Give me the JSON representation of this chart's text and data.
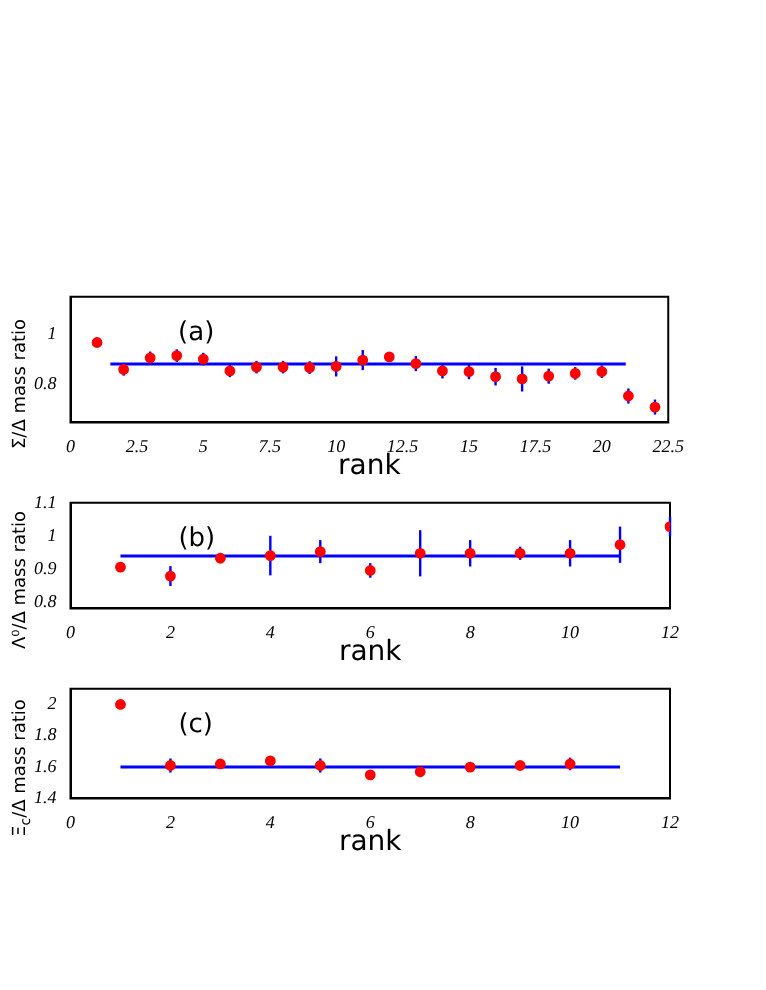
{
  "chart_data": [
    {
      "type": "scatter",
      "ylabel": "Σ/Δ mass ratio",
      "xlabel": "rank",
      "annotations": [
        "(a)"
      ],
      "xlim": [
        0,
        22.5
      ],
      "xticks": [
        0,
        2.5,
        5,
        7.5,
        10,
        12.5,
        15,
        17.5,
        20,
        22.5
      ],
      "ylim": [
        0.65,
        1.15
      ],
      "yticks": [
        0.8,
        1
      ],
      "series": [
        {
          "marker": "circle",
          "color": "#ff0000",
          "x": [
            1,
            2,
            3,
            4,
            5,
            6,
            7,
            8,
            9,
            10,
            11,
            12,
            13,
            14,
            15,
            16,
            17,
            18,
            19,
            20,
            21,
            22
          ],
          "values": [
            0.968,
            0.861,
            0.907,
            0.916,
            0.902,
            0.855,
            0.87,
            0.87,
            0.868,
            0.873,
            0.898,
            0.911,
            0.884,
            0.855,
            0.852,
            0.832,
            0.823,
            0.834,
            0.845,
            0.852,
            0.755,
            0.711
          ],
          "errors": [
            null,
            0.025,
            0.025,
            0.025,
            0.025,
            0.025,
            0.025,
            0.025,
            0.025,
            0.04,
            0.04,
            null,
            0.03,
            0.03,
            0.03,
            0.035,
            0.05,
            0.03,
            0.025,
            0.025,
            0.03,
            0.03
          ]
        },
        {
          "type": "line",
          "marker": "none",
          "color": "#0000ff",
          "x": [
            1.5,
            20.9
          ],
          "values": [
            0.882,
            0.882
          ]
        }
      ]
    },
    {
      "type": "scatter",
      "ylabel": "Λ⁰/Δ mass ratio",
      "xlabel": "rank",
      "annotations": [
        "(b)"
      ],
      "xlim": [
        0,
        12
      ],
      "xticks": [
        0,
        2,
        4,
        6,
        8,
        10,
        12
      ],
      "ylim": [
        0.78,
        1.1
      ],
      "yticks": [
        0.8,
        0.9,
        1,
        1.1
      ],
      "series": [
        {
          "marker": "circle",
          "color": "#ff0000",
          "x": [
            1,
            2,
            3,
            4,
            5,
            6,
            7,
            8,
            9,
            10,
            11,
            12
          ],
          "values": [
            0.905,
            0.878,
            0.932,
            0.94,
            0.952,
            0.895,
            0.947,
            0.947,
            0.947,
            0.947,
            0.973,
            1.028
          ],
          "errors": [
            null,
            0.03,
            null,
            0.06,
            0.035,
            0.022,
            0.07,
            0.04,
            0.02,
            0.04,
            0.055,
            0.03
          ]
        },
        {
          "type": "line",
          "marker": "none",
          "color": "#0000ff",
          "x": [
            1,
            11
          ],
          "values": [
            0.939,
            0.939
          ]
        }
      ]
    },
    {
      "type": "scatter",
      "ylabel": "Ξ$_{c}$/Δ mass ratio",
      "xlabel": "rank",
      "annotations": [
        "(c)"
      ],
      "xlim": [
        0,
        12
      ],
      "xticks": [
        0,
        2,
        4,
        6,
        8,
        10,
        12
      ],
      "ylim": [
        1.4,
        2.1
      ],
      "yticks": [
        1.4,
        1.6,
        1.8,
        2
      ],
      "series": [
        {
          "marker": "circle",
          "color": "#ff0000",
          "x": [
            1,
            2,
            3,
            4,
            5,
            6,
            7,
            8,
            9,
            10
          ],
          "values": [
            2.0,
            1.61,
            1.62,
            1.64,
            1.61,
            1.55,
            1.57,
            1.6,
            1.61,
            1.62
          ],
          "errors": [
            null,
            0.045,
            null,
            null,
            0.045,
            null,
            null,
            null,
            null,
            0.04
          ]
        },
        {
          "type": "line",
          "marker": "none",
          "color": "#0000ff",
          "x": [
            1,
            11
          ],
          "values": [
            1.6,
            1.6
          ]
        }
      ]
    }
  ]
}
